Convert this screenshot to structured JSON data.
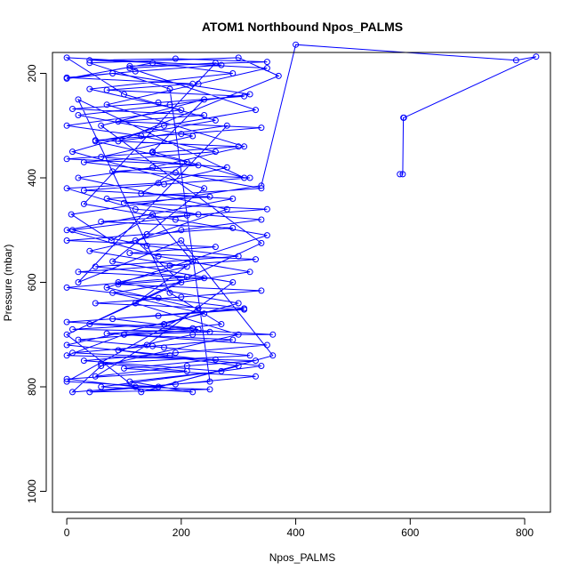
{
  "chart_data": {
    "type": "line",
    "title": "ATOM1 Northbound Npos_PALMS",
    "xlabel": "Npos_PALMS",
    "ylabel": "Pressure (mbar)",
    "xlim": [
      -25,
      845
    ],
    "ylim": [
      1040,
      160
    ],
    "y_reversed": true,
    "x_ticks": [
      0,
      200,
      400,
      600,
      800
    ],
    "y_ticks": [
      200,
      400,
      600,
      800,
      1000
    ],
    "x_tick_labels": [
      "0",
      "200",
      "400",
      "600",
      "800"
    ],
    "y_tick_labels": [
      "200",
      "400",
      "600",
      "800",
      "1000"
    ],
    "grid": false,
    "legend": "none",
    "style": "both (line + open circle markers)",
    "colors": {
      "series": "#0000ff",
      "axis": "#000000",
      "background": "#ffffff"
    },
    "series": [
      {
        "points": [
          [
            582,
            393
          ],
          [
            587,
            393
          ],
          [
            588,
            285
          ],
          [
            589,
            285
          ],
          [
            820,
            168
          ],
          [
            785,
            175
          ],
          [
            400,
            145
          ],
          [
            340,
            415
          ],
          [
            8,
            470
          ],
          [
            78,
            520
          ],
          [
            150,
            470
          ],
          [
            220,
            560
          ],
          [
            120,
            640
          ],
          [
            300,
            700
          ],
          [
            60,
            760
          ],
          [
            10,
            810
          ],
          [
            250,
            790
          ],
          [
            180,
            230
          ],
          [
            40,
            180
          ],
          [
            300,
            170
          ],
          [
            370,
            205
          ],
          [
            90,
            330
          ],
          [
            280,
            300
          ],
          [
            20,
            600
          ],
          [
            200,
            520
          ],
          [
            360,
            740
          ],
          [
            130,
            810
          ],
          [
            0,
            700
          ],
          [
            340,
            525
          ],
          [
            60,
            300
          ],
          [
            240,
            250
          ],
          [
            150,
            350
          ],
          [
            310,
            400
          ],
          [
            20,
            250
          ],
          [
            180,
            620
          ],
          [
            270,
            680
          ],
          [
            100,
            700
          ],
          [
            0,
            740
          ],
          [
            330,
            750
          ],
          [
            210,
            760
          ],
          [
            50,
            780
          ],
          [
            140,
            720
          ],
          [
            290,
            600
          ],
          [
            80,
            560
          ],
          [
            240,
            420
          ],
          [
            10,
            350
          ],
          [
            170,
            300
          ],
          [
            330,
            270
          ],
          [
            110,
            190
          ],
          [
            260,
            180
          ],
          [
            30,
            450
          ],
          [
            190,
            480
          ],
          [
            350,
            510
          ],
          [
            70,
            610
          ],
          [
            230,
            650
          ],
          [
            0,
            790
          ],
          [
            160,
            800
          ],
          [
            300,
            760
          ],
          [
            90,
            730
          ],
          [
            220,
            700
          ],
          [
            360,
            700
          ],
          [
            40,
            680
          ],
          [
            200,
            600
          ],
          [
            120,
            520
          ],
          [
            280,
            460
          ],
          [
            20,
            400
          ],
          [
            150,
            380
          ],
          [
            310,
            340
          ],
          [
            70,
            260
          ],
          [
            230,
            220
          ],
          [
            350,
            190
          ],
          [
            0,
            170
          ],
          [
            100,
            240
          ],
          [
            260,
            290
          ],
          [
            50,
            330
          ],
          [
            210,
            370
          ],
          [
            130,
            430
          ],
          [
            290,
            440
          ],
          [
            0,
            500
          ],
          [
            160,
            550
          ],
          [
            320,
            580
          ],
          [
            80,
            620
          ],
          [
            240,
            660
          ],
          [
            0,
            720
          ],
          [
            180,
            740
          ],
          [
            340,
            760
          ],
          [
            60,
            800
          ],
          [
            220,
            810
          ],
          [
            110,
            790
          ],
          [
            270,
            770
          ],
          [
            30,
            750
          ],
          [
            190,
            735
          ],
          [
            350,
            720
          ],
          [
            100,
            700
          ],
          [
            250,
            695
          ],
          [
            10,
            690
          ],
          [
            170,
            680
          ],
          [
            300,
            640
          ],
          [
            90,
            600
          ],
          [
            210,
            570
          ],
          [
            40,
            540
          ],
          [
            200,
            500
          ],
          [
            340,
            480
          ],
          [
            120,
            460
          ],
          [
            0,
            420
          ],
          [
            160,
            410
          ],
          [
            280,
            380
          ],
          [
            60,
            360
          ],
          [
            220,
            320
          ],
          [
            20,
            280
          ],
          [
            180,
            260
          ],
          [
            320,
            240
          ],
          [
            80,
            200
          ],
          [
            0,
            210
          ],
          [
            150,
            180
          ],
          [
            290,
            200
          ],
          [
            40,
            230
          ],
          [
            200,
            270
          ],
          [
            0,
            300
          ],
          [
            130,
            320
          ],
          [
            260,
            350
          ],
          [
            30,
            370
          ],
          [
            190,
            390
          ],
          [
            340,
            420
          ],
          [
            70,
            440
          ],
          [
            230,
            470
          ],
          [
            10,
            500
          ],
          [
            140,
            530
          ],
          [
            300,
            550
          ],
          [
            50,
            570
          ],
          [
            210,
            590
          ],
          [
            0,
            610
          ],
          [
            160,
            630
          ],
          [
            310,
            650
          ],
          [
            80,
            670
          ],
          [
            230,
            690
          ],
          [
            20,
            710
          ],
          [
            170,
            725
          ],
          [
            320,
            740
          ],
          [
            60,
            755
          ],
          [
            210,
            770
          ],
          [
            0,
            785
          ],
          [
            120,
            800
          ],
          [
            250,
            805
          ],
          [
            40,
            810
          ],
          [
            190,
            795
          ],
          [
            330,
            780
          ],
          [
            100,
            765
          ],
          [
            260,
            748
          ],
          [
            10,
            735
          ],
          [
            150,
            722
          ],
          [
            290,
            710
          ],
          [
            70,
            698
          ],
          [
            220,
            688
          ],
          [
            0,
            676
          ],
          [
            160,
            664
          ],
          [
            310,
            652
          ],
          [
            50,
            640
          ],
          [
            200,
            628
          ],
          [
            340,
            616
          ],
          [
            90,
            604
          ],
          [
            240,
            592
          ],
          [
            20,
            580
          ],
          [
            180,
            568
          ],
          [
            330,
            556
          ],
          [
            110,
            544
          ],
          [
            260,
            532
          ],
          [
            0,
            520
          ],
          [
            140,
            508
          ],
          [
            290,
            496
          ],
          [
            60,
            484
          ],
          [
            210,
            472
          ],
          [
            350,
            460
          ],
          [
            100,
            448
          ],
          [
            250,
            436
          ],
          [
            30,
            424
          ],
          [
            170,
            412
          ],
          [
            320,
            400
          ],
          [
            80,
            388
          ],
          [
            230,
            376
          ],
          [
            0,
            364
          ],
          [
            150,
            352
          ],
          [
            300,
            340
          ],
          [
            50,
            328
          ],
          [
            200,
            316
          ],
          [
            340,
            304
          ],
          [
            90,
            292
          ],
          [
            240,
            280
          ],
          [
            10,
            268
          ],
          [
            160,
            256
          ],
          [
            310,
            244
          ],
          [
            70,
            232
          ],
          [
            220,
            220
          ],
          [
            0,
            208
          ],
          [
            120,
            196
          ],
          [
            270,
            184
          ],
          [
            40,
            175
          ],
          [
            190,
            172
          ],
          [
            350,
            178
          ],
          [
            110,
            186
          ]
        ]
      }
    ]
  }
}
